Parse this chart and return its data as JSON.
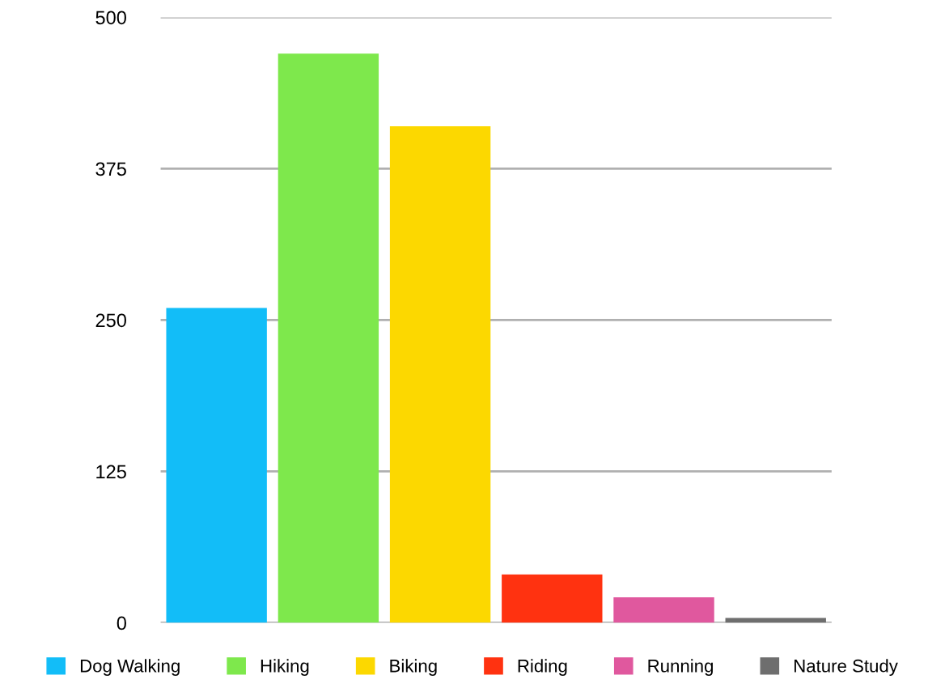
{
  "chart_data": {
    "type": "bar",
    "categories": [
      null,
      null,
      null,
      null,
      null,
      null
    ],
    "series": [
      {
        "name": "Dog Walking",
        "color": "#12bdf8",
        "values": [
          260,
          null,
          null,
          null,
          null,
          null
        ]
      },
      {
        "name": "Hiking",
        "color": "#7ee84c",
        "values": [
          null,
          470,
          null,
          null,
          null,
          null
        ]
      },
      {
        "name": "Biking",
        "color": "#fcd800",
        "values": [
          null,
          null,
          410,
          null,
          null,
          null
        ]
      },
      {
        "name": "Riding",
        "color": "#ff3210",
        "values": [
          null,
          null,
          null,
          40,
          null,
          null
        ]
      },
      {
        "name": "Running",
        "color": "#e0589e",
        "values": [
          null,
          null,
          null,
          null,
          21,
          null
        ]
      },
      {
        "name": "Nature Study",
        "color": "#6e6e6e",
        "values": [
          null,
          null,
          null,
          null,
          null,
          4
        ]
      }
    ],
    "ylim": [
      0,
      500
    ],
    "yticks": [
      0,
      125,
      250,
      375,
      500
    ],
    "grid": "y",
    "legend": "bottom"
  }
}
